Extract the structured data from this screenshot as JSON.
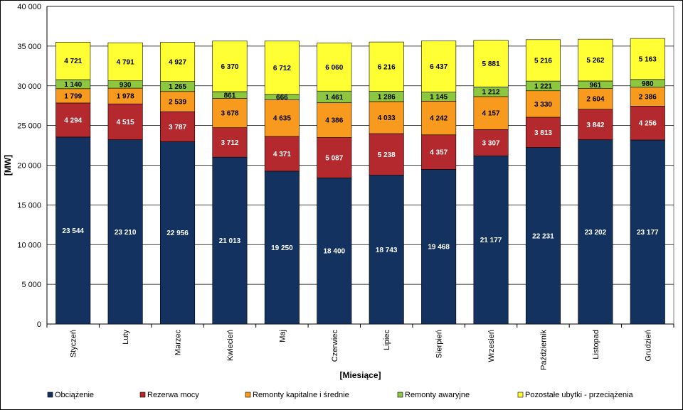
{
  "chart_data": {
    "type": "bar",
    "stacked": true,
    "xlabel": "[Miesiące]",
    "ylabel": "[MW]",
    "ylim": [
      0,
      40000
    ],
    "ytick_step": 5000,
    "grid": "horizontal",
    "legend_position": "bottom",
    "number_format": "space-thousands",
    "categories": [
      "Styczeń",
      "Luty",
      "Marzec",
      "Kwiecień",
      "Maj",
      "Czerwiec",
      "Lipiec",
      "Sierpień",
      "Wrzesień",
      "Październik",
      "Listopad",
      "Grudzień"
    ],
    "series": [
      {
        "name": "Obciążenie",
        "color": "#14325F",
        "label_color": "#FFFFFF",
        "values": [
          23544,
          23210,
          22956,
          21013,
          19250,
          18400,
          18743,
          19468,
          21177,
          22231,
          23202,
          23177
        ]
      },
      {
        "name": "Rezerwa mocy",
        "color": "#B3292E",
        "label_color": "#FFFFFF",
        "values": [
          4294,
          4515,
          3787,
          3712,
          4371,
          5087,
          5238,
          4357,
          3307,
          3813,
          3842,
          4256
        ]
      },
      {
        "name": "Remonty kapitalne i średnie",
        "color": "#F79A1E",
        "label_color": "#000000",
        "values": [
          1799,
          1978,
          2539,
          3678,
          4635,
          4386,
          4033,
          4242,
          4157,
          3330,
          2604,
          2386
        ]
      },
      {
        "name": "Remonty awaryjne",
        "color": "#8DC63F",
        "label_color": "#000000",
        "values": [
          1140,
          930,
          1265,
          861,
          666,
          1461,
          1286,
          1145,
          1212,
          1221,
          961,
          980
        ]
      },
      {
        "name": "Pozostałe ubytki - przeciążenia",
        "color": "#FFFF33",
        "label_color": "#000000",
        "values": [
          4721,
          4791,
          4927,
          6370,
          6712,
          6060,
          6216,
          6437,
          5881,
          5216,
          5262,
          5163
        ]
      }
    ]
  }
}
